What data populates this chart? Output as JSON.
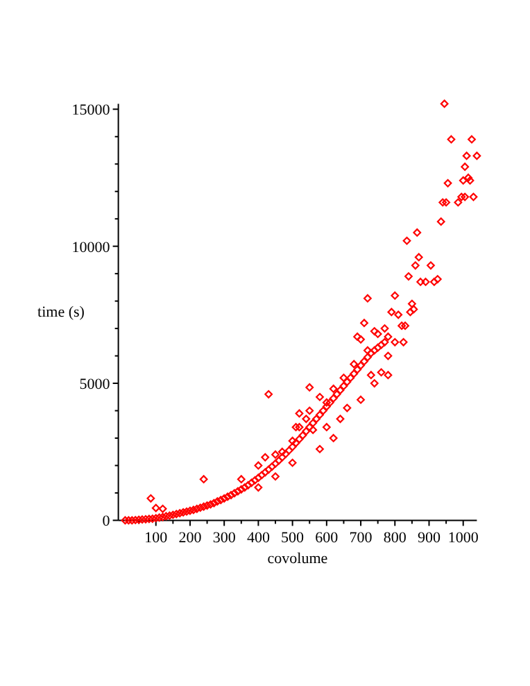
{
  "chart_data": {
    "type": "scatter",
    "xlabel": "covolume",
    "ylabel": "time (s)",
    "marker": "diamond",
    "grid": false,
    "xlim": [
      -10,
      1040
    ],
    "ylim": [
      0,
      15200
    ],
    "xticks": [
      {
        "value": 50,
        "label": null
      },
      100,
      {
        "value": 150,
        "label": null
      },
      200,
      {
        "value": 250,
        "label": null
      },
      300,
      {
        "value": 350,
        "label": null
      },
      400,
      {
        "value": 450,
        "label": null
      },
      500,
      {
        "value": 550,
        "label": null
      },
      600,
      {
        "value": 650,
        "label": null
      },
      700,
      {
        "value": 750,
        "label": null
      },
      800,
      {
        "value": 850,
        "label": null
      },
      900,
      {
        "value": 950,
        "label": null
      },
      1000
    ],
    "yticks": [
      0,
      {
        "value": 1000,
        "label": null
      },
      {
        "value": 2000,
        "label": null
      },
      {
        "value": 3000,
        "label": null
      },
      {
        "value": 4000,
        "label": null
      },
      5000,
      {
        "value": 6000,
        "label": null
      },
      {
        "value": 7000,
        "label": null
      },
      {
        "value": 8000,
        "label": null
      },
      {
        "value": 9000,
        "label": null
      },
      10000,
      {
        "value": 11000,
        "label": null
      },
      {
        "value": 12000,
        "label": null
      },
      {
        "value": 13000,
        "label": null
      },
      {
        "value": 14000,
        "label": null
      },
      15000
    ],
    "series": [
      {
        "color": "#ff0000",
        "x": [
          10,
          20,
          30,
          40,
          50,
          60,
          70,
          80,
          90,
          100,
          110,
          120,
          130,
          140,
          150,
          160,
          170,
          180,
          190,
          200,
          210,
          220,
          230,
          240,
          250,
          260,
          270,
          280,
          290,
          300,
          310,
          320,
          330,
          340,
          350,
          360,
          370,
          380,
          390,
          400,
          410,
          420,
          430,
          440,
          450,
          460,
          470,
          480,
          490,
          500,
          510,
          520,
          530,
          540,
          550,
          560,
          570,
          580,
          590,
          600,
          610,
          620,
          630,
          640,
          650,
          660,
          670,
          680,
          690,
          700,
          710,
          720,
          730,
          740,
          750,
          760,
          770,
          780,
          350,
          400,
          420,
          450,
          470,
          400,
          450,
          500,
          500,
          520,
          540,
          550,
          560,
          580,
          600,
          600,
          620,
          640,
          660,
          680,
          700,
          720,
          740,
          760,
          770,
          780,
          750,
          730,
          700,
          650,
          620,
          580,
          780,
          85,
          100,
          120,
          240,
          430,
          550,
          520,
          510,
          690,
          710,
          720,
          740,
          800,
          810,
          820,
          825,
          830,
          835,
          840,
          845,
          850,
          855,
          860,
          865,
          870,
          875,
          890,
          905,
          915,
          925,
          935,
          940,
          945,
          950,
          955,
          965,
          985,
          995,
          1000,
          1005,
          1005,
          1010,
          1015,
          1020,
          1025,
          1030,
          1040,
          800,
          790
        ],
        "values": [
          0,
          0,
          0,
          10,
          20,
          30,
          40,
          50,
          60,
          80,
          100,
          120,
          150,
          170,
          200,
          230,
          260,
          290,
          320,
          350,
          380,
          420,
          460,
          500,
          540,
          580,
          630,
          690,
          740,
          800,
          860,
          920,
          990,
          1060,
          1130,
          1200,
          1280,
          1370,
          1460,
          1550,
          1650,
          1750,
          1850,
          1960,
          2070,
          2180,
          2300,
          2420,
          2550,
          2680,
          2820,
          2960,
          3100,
          3250,
          3400,
          3550,
          3700,
          3850,
          4000,
          4150,
          4300,
          4450,
          4600,
          4750,
          4900,
          5050,
          5200,
          5350,
          5500,
          5650,
          5800,
          5950,
          6100,
          6200,
          6300,
          6400,
          6500,
          6700,
          1500,
          2000,
          2300,
          2400,
          2500,
          1200,
          1600,
          2100,
          2900,
          3400,
          3700,
          4000,
          3300,
          2600,
          3400,
          4300,
          3000,
          3700,
          4100,
          5700,
          4400,
          6200,
          5000,
          5400,
          7000,
          6000,
          6800,
          5300,
          6600,
          5200,
          4800,
          4500,
          5300,
          800,
          450,
          420,
          1500,
          4600,
          4850,
          3900,
          3400,
          6700,
          7200,
          8100,
          6900,
          8200,
          7500,
          7100,
          6500,
          7100,
          10200,
          8900,
          7600,
          7900,
          7700,
          9300,
          10500,
          9600,
          8700,
          8700,
          9300,
          8700,
          8800,
          10900,
          11600,
          15200,
          11600,
          12300,
          13900,
          11600,
          11800,
          12400,
          11800,
          12900,
          13300,
          12500,
          12400,
          13900,
          11800,
          13300,
          6500,
          7600
        ]
      }
    ]
  }
}
